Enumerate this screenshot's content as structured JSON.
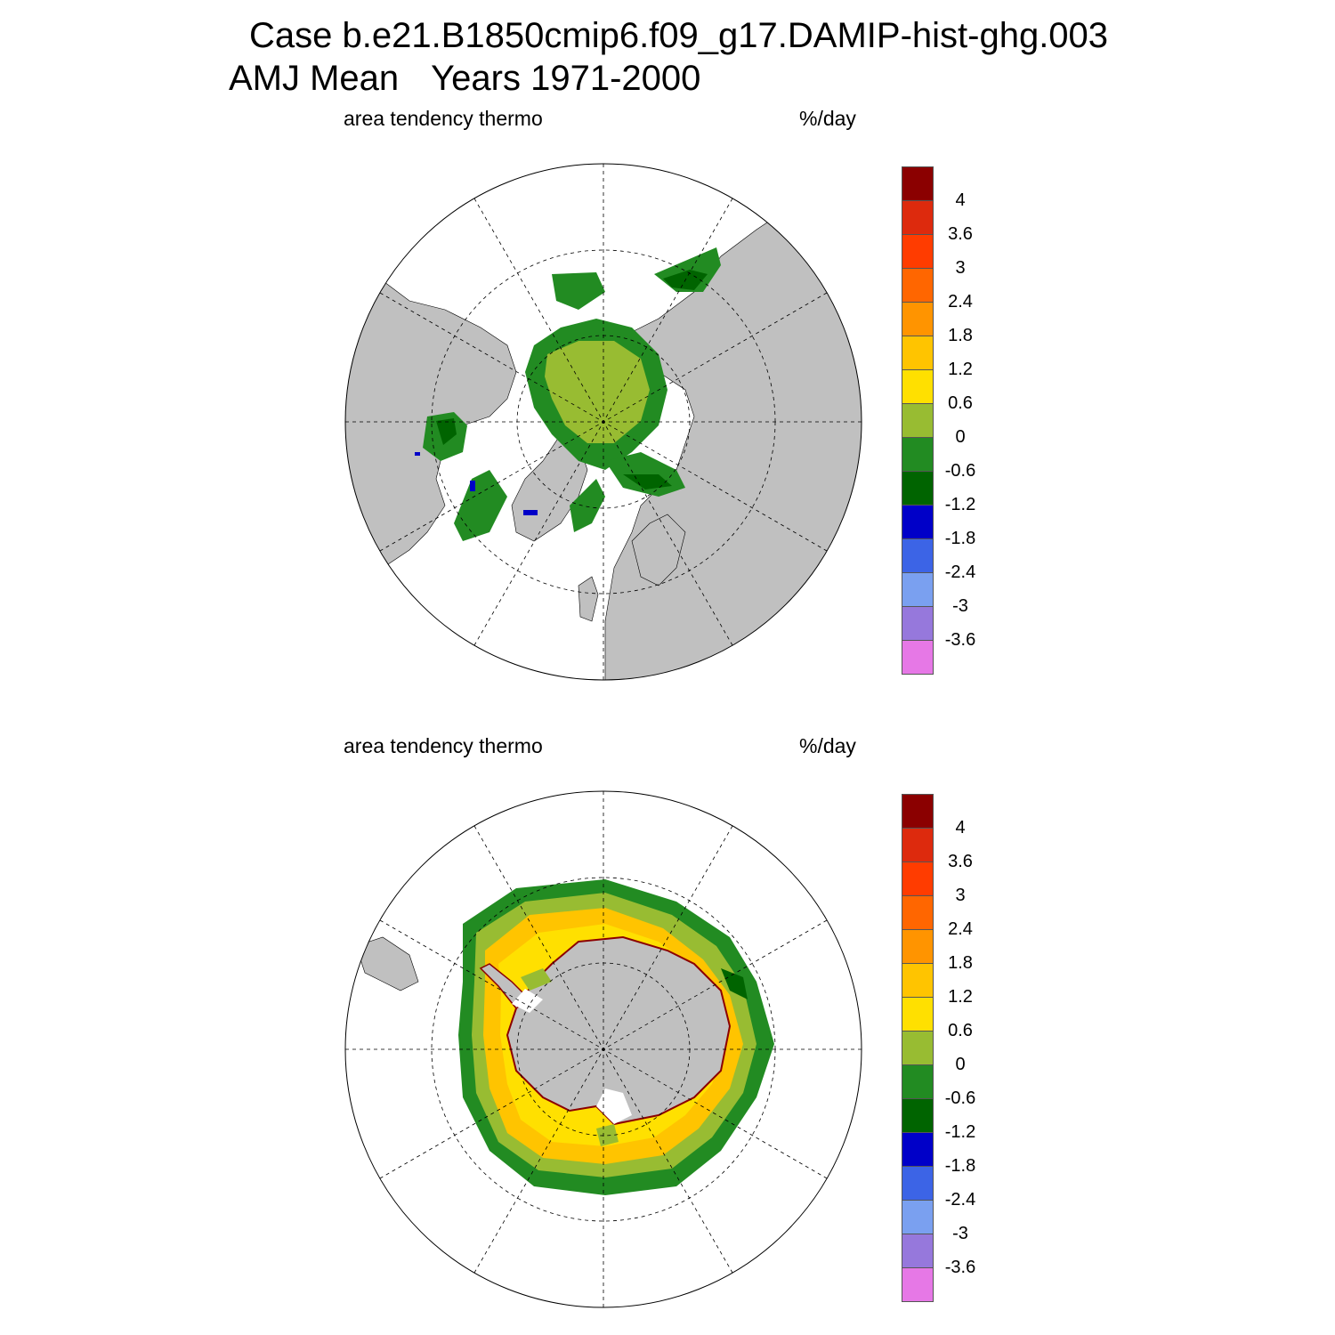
{
  "title": {
    "line1": "Case b.e21.B1850cmip6.f09_g17.DAMIP-hist-ghg.003",
    "season": "AMJ Mean",
    "years": "Years 1971-2000"
  },
  "panels": [
    {
      "name": "north",
      "left_label": "area tendency thermo",
      "right_label": "%/day"
    },
    {
      "name": "south",
      "left_label": "area tendency thermo",
      "right_label": "%/day"
    }
  ],
  "colorbar": {
    "labels": [
      "4",
      "3.6",
      "3",
      "2.4",
      "1.8",
      "1.2",
      "0.6",
      "0",
      "-0.6",
      "-1.2",
      "-1.8",
      "-2.4",
      "-3",
      "-3.6"
    ],
    "colors": [
      "#8b0000",
      "#dd2a0d",
      "#ff3c00",
      "#ff6600",
      "#ff9400",
      "#ffc400",
      "#ffe000",
      "#98bc32",
      "#228b22",
      "#006400",
      "#0000c8",
      "#3c64e6",
      "#7aa0f0",
      "#9678dc",
      "#e678e6"
    ]
  },
  "colors": {
    "land": "#c0c0c0",
    "ocean": "#ffffff"
  }
}
